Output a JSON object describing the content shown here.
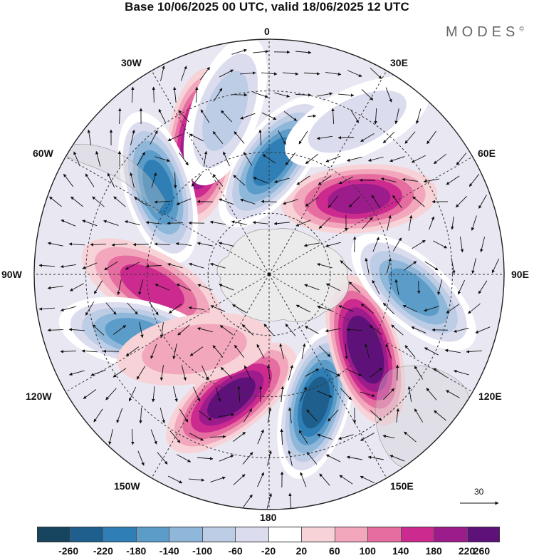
{
  "title": "Base 10/06/2025 00 UTC, valid 18/06/2025 12 UTC",
  "brand": "MODES",
  "brand_mark": "©",
  "longitude_labels": {
    "top": "0",
    "top_left": "30W",
    "top_right": "30E",
    "upper_left": "60W",
    "upper_right": "60E",
    "left": "90W",
    "right": "90E",
    "lower_left": "120W",
    "lower_right": "120E",
    "bottom_left": "150W",
    "bottom_right": "150E",
    "bottom": "180"
  },
  "reference_vector": "30",
  "colorbar": {
    "ticks": [
      "-260",
      "-220",
      "-180",
      "-140",
      "-100",
      "-60",
      "-20",
      "20",
      "60",
      "100",
      "140",
      "180",
      "220",
      "260"
    ],
    "colors": [
      "#17445f",
      "#1e5f8e",
      "#2f7fb6",
      "#5c9cc9",
      "#8fb7da",
      "#bdcde6",
      "#dcdcef",
      "#ffffff",
      "#f7d3d8",
      "#f2a7bd",
      "#e66da0",
      "#cc2a8f",
      "#9c1c8c",
      "#5e1279"
    ]
  },
  "anomaly_centers": [
    {
      "lon": -17,
      "colat": 0.55,
      "value": 230
    },
    {
      "lon": 20,
      "colat": 0.58,
      "value": -260
    },
    {
      "lon": 52,
      "colat": 0.52,
      "value": 260
    },
    {
      "lon": 83,
      "colat": 0.62,
      "value": -200
    },
    {
      "lon": 130,
      "colat": 0.5,
      "value": 200
    },
    {
      "lon": 178,
      "colat": 0.48,
      "value": -240
    },
    {
      "lon": -152,
      "colat": 0.62,
      "value": 250
    },
    {
      "lon": -128,
      "colat": 0.6,
      "value": -220
    },
    {
      "lon": -84,
      "colat": 0.5,
      "value": 150
    },
    {
      "lon": -66,
      "colat": 0.62,
      "value": -200
    },
    {
      "lon": -165,
      "colat": 0.72,
      "value": -90
    },
    {
      "lon": 150,
      "colat": 0.75,
      "value": -60
    },
    {
      "lon": -45,
      "colat": 0.45,
      "value": 60
    }
  ]
}
